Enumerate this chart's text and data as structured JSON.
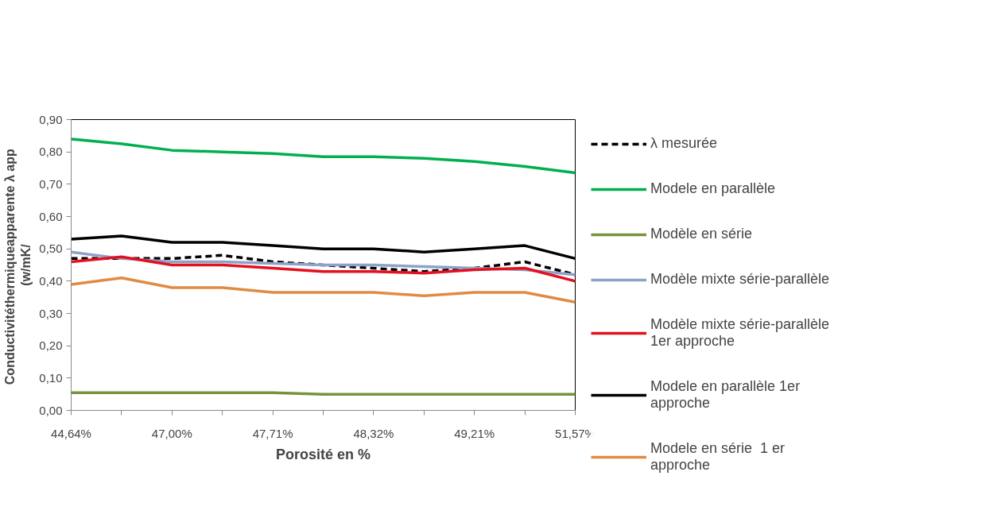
{
  "chart_data": {
    "type": "line",
    "xlabel": "Porosité en %",
    "ylabel": "Conductivitéthermiqueapparente  λ app\n(w/mK/",
    "categories": [
      "44,64%",
      null,
      "47,00%",
      null,
      "47,71%",
      null,
      "48,32%",
      null,
      "49,21%",
      null,
      "51,57%"
    ],
    "ylim": [
      0,
      0.9
    ],
    "yticks": [
      {
        "value": 0,
        "label": "0,00"
      },
      {
        "value": 0.1,
        "label": "0,10"
      },
      {
        "value": 0.2,
        "label": "0,20"
      },
      {
        "value": 0.3,
        "label": "0,30"
      },
      {
        "value": 0.4,
        "label": "0,40"
      },
      {
        "value": 0.5,
        "label": "0,50"
      },
      {
        "value": 0.6,
        "label": "0,60"
      },
      {
        "value": 0.7,
        "label": "0,70"
      },
      {
        "value": 0.8,
        "label": "0,80"
      },
      {
        "value": 0.9,
        "label": "0,90"
      }
    ],
    "grid": false,
    "legend": "right",
    "marker": "none",
    "series": [
      {
        "name": "λ mesurée",
        "color": "#000000",
        "line_style": "dashed",
        "values": [
          0.47,
          0.47,
          0.47,
          0.48,
          0.46,
          0.45,
          0.44,
          0.43,
          0.44,
          0.46,
          0.42
        ]
      },
      {
        "name": "Modele en parallèle",
        "color": "#00b050",
        "values": [
          0.84,
          0.825,
          0.805,
          0.8,
          0.795,
          0.785,
          0.785,
          0.78,
          0.77,
          0.755,
          0.735
        ]
      },
      {
        "name": "Modèle en série",
        "color": "#77933c",
        "values": [
          0.055,
          0.055,
          0.055,
          0.055,
          0.055,
          0.05,
          0.05,
          0.05,
          0.05,
          0.05,
          0.05
        ]
      },
      {
        "name": "Modèle mixte série-parallèle",
        "color": "#8ea1c9",
        "values": [
          0.49,
          0.47,
          0.46,
          0.46,
          0.455,
          0.45,
          0.45,
          0.445,
          0.44,
          0.435,
          0.42
        ]
      },
      {
        "name": "Modèle mixte série-parallèle  1er approche",
        "color": "#e3101f",
        "values": [
          0.46,
          0.475,
          0.45,
          0.45,
          0.44,
          0.43,
          0.43,
          0.425,
          0.435,
          0.44,
          0.4
        ]
      },
      {
        "name": "Modele en parallèle 1er approche",
        "color": "#000000",
        "values": [
          0.53,
          0.54,
          0.52,
          0.52,
          0.51,
          0.5,
          0.5,
          0.49,
          0.5,
          0.51,
          0.47
        ]
      },
      {
        "name": "Modele en série  1 er approche",
        "color": "#e08b44",
        "values": [
          0.39,
          0.41,
          0.38,
          0.38,
          0.365,
          0.365,
          0.365,
          0.355,
          0.365,
          0.365,
          0.335
        ]
      }
    ]
  }
}
